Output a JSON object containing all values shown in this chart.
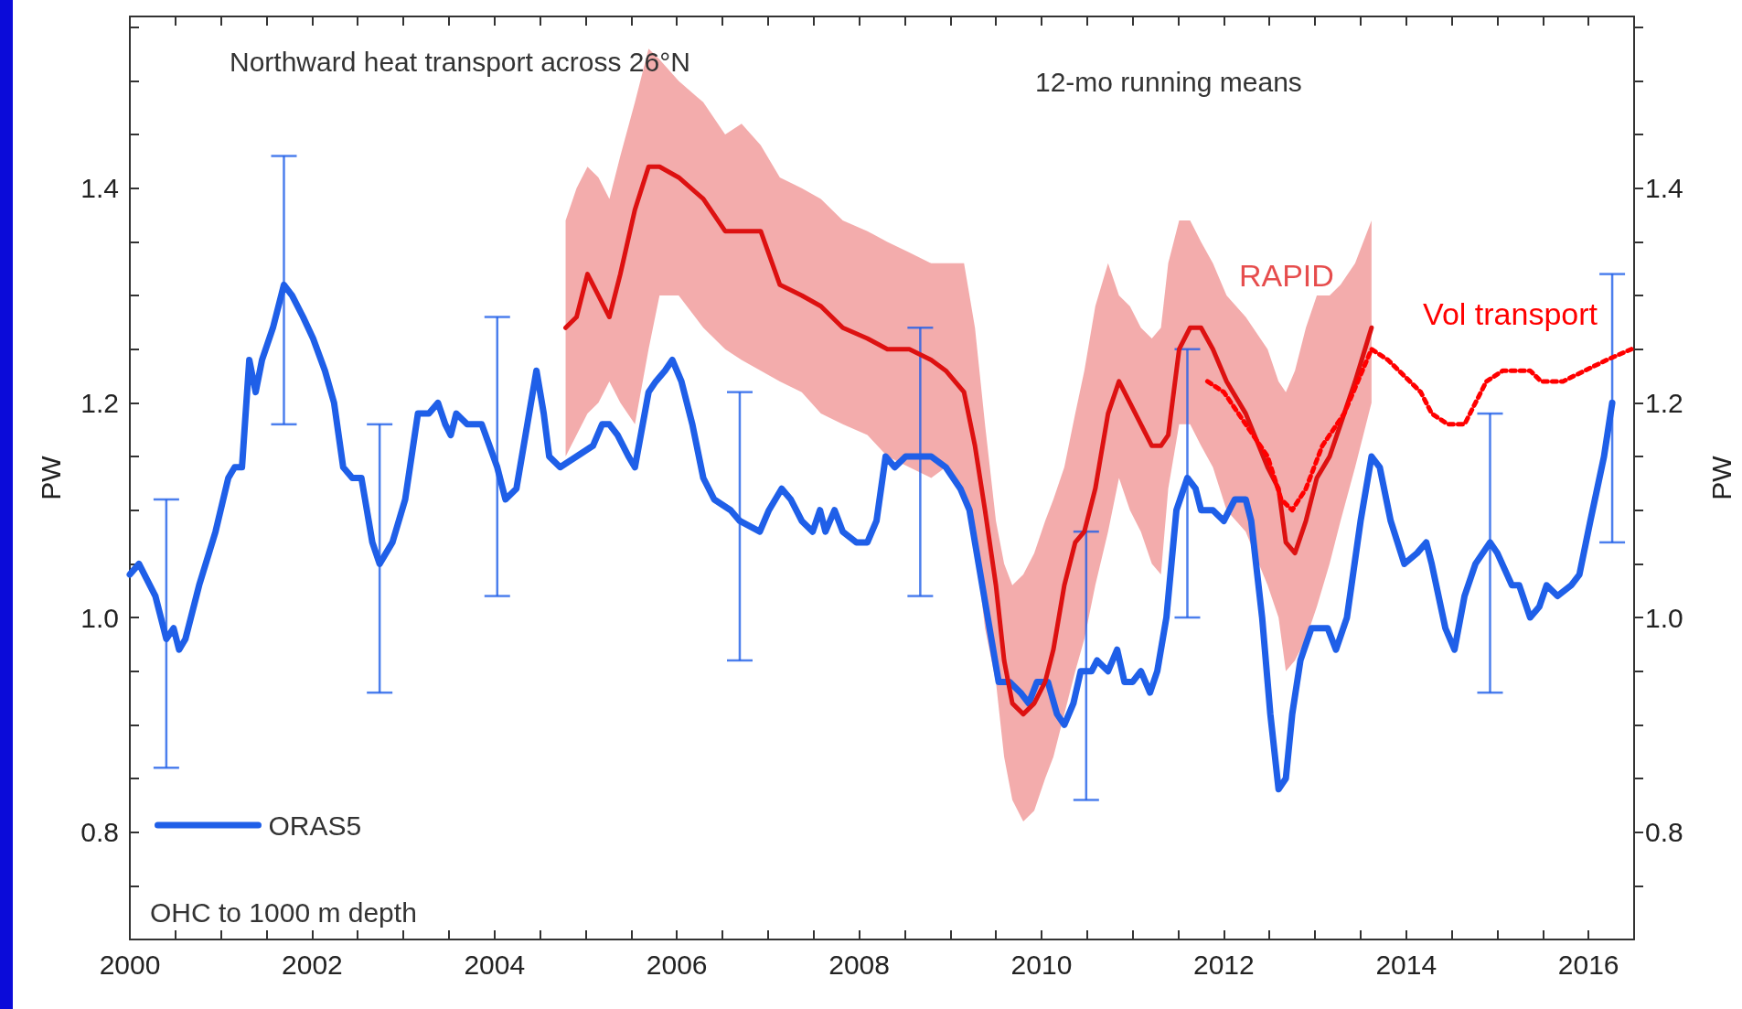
{
  "chart_data": {
    "type": "line",
    "ylabel": "PW",
    "y2label": "PW",
    "annotations": [
      "Northward heat transport across 26°N",
      "12-mo running means",
      "OHC to 1000 m depth"
    ],
    "xlim": [
      2000,
      2016.5
    ],
    "xticks": [
      2000,
      {
        "value": 2000.5,
        "label": null
      },
      {
        "value": 2001,
        "label": null
      },
      {
        "value": 2001.5,
        "label": null
      },
      2002,
      {
        "value": 2002.5,
        "label": null
      },
      {
        "value": 2003,
        "label": null
      },
      {
        "value": 2003.5,
        "label": null
      },
      2004,
      {
        "value": 2004.5,
        "label": null
      },
      {
        "value": 2005,
        "label": null
      },
      {
        "value": 2005.5,
        "label": null
      },
      2006,
      {
        "value": 2006.5,
        "label": null
      },
      {
        "value": 2007,
        "label": null
      },
      {
        "value": 2007.5,
        "label": null
      },
      2008,
      {
        "value": 2008.5,
        "label": null
      },
      {
        "value": 2009,
        "label": null
      },
      {
        "value": 2009.5,
        "label": null
      },
      2010,
      {
        "value": 2010.5,
        "label": null
      },
      {
        "value": 2011,
        "label": null
      },
      {
        "value": 2011.5,
        "label": null
      },
      2012,
      {
        "value": 2012.5,
        "label": null
      },
      {
        "value": 2013,
        "label": null
      },
      {
        "value": 2013.5,
        "label": null
      },
      2014,
      {
        "value": 2014.5,
        "label": null
      },
      {
        "value": 2015,
        "label": null
      },
      {
        "value": 2015.5,
        "label": null
      },
      2016
    ],
    "ylim": [
      0.7,
      1.56
    ],
    "yticks": [
      {
        "value": 0.75,
        "label": null
      },
      0.8,
      {
        "value": 0.85,
        "label": null
      },
      {
        "value": 0.9,
        "label": null
      },
      {
        "value": 0.95,
        "label": null
      },
      {
        "value": 1,
        "label": "1.0"
      },
      {
        "value": 1.05,
        "label": null
      },
      {
        "value": 1.1,
        "label": null
      },
      {
        "value": 1.15,
        "label": null
      },
      1.2,
      {
        "value": 1.25,
        "label": null
      },
      {
        "value": 1.3,
        "label": null
      },
      {
        "value": 1.35,
        "label": null
      },
      1.4,
      {
        "value": 1.45,
        "label": null
      },
      {
        "value": 1.5,
        "label": null
      },
      {
        "value": 1.55,
        "label": null
      }
    ],
    "y2lim": [
      0.7,
      1.56
    ],
    "y2ticks": [
      {
        "value": 0.75,
        "label": null
      },
      0.8,
      {
        "value": 0.85,
        "label": null
      },
      {
        "value": 0.9,
        "label": null
      },
      {
        "value": 0.95,
        "label": null
      },
      {
        "value": 1,
        "label": "1.0"
      },
      {
        "value": 1.05,
        "label": null
      },
      {
        "value": 1.1,
        "label": null
      },
      {
        "value": 1.15,
        "label": null
      },
      1.2,
      {
        "value": 1.25,
        "label": null
      },
      {
        "value": 1.3,
        "label": null
      },
      {
        "value": 1.35,
        "label": null
      },
      1.4,
      {
        "value": 1.45,
        "label": null
      },
      {
        "value": 1.5,
        "label": null
      },
      {
        "value": 1.55,
        "label": null
      }
    ],
    "grid": false,
    "legend": "bottom left",
    "marker": "none",
    "series": [
      {
        "name": "ORAS5",
        "color": "#1f5fe8",
        "x": [
          2000.0,
          2000.1,
          2000.28,
          2000.4,
          2000.48,
          2000.54,
          2000.61,
          2000.76,
          2000.94,
          2001.08,
          2001.15,
          2001.23,
          2001.31,
          2001.38,
          2001.45,
          2001.57,
          2001.69,
          2001.78,
          2001.9,
          2002.01,
          2002.14,
          2002.24,
          2002.34,
          2002.44,
          2002.54,
          2002.66,
          2002.74,
          2002.88,
          2003.02,
          2003.16,
          2003.28,
          2003.38,
          2003.46,
          2003.52,
          2003.58,
          2003.7,
          2003.86,
          2004.03,
          2004.12,
          2004.24,
          2004.34,
          2004.46,
          2004.54,
          2004.6,
          2004.72,
          2004.9,
          2005.08,
          2005.18,
          2005.26,
          2005.35,
          2005.47,
          2005.54,
          2005.69,
          2005.77,
          2005.87,
          2005.95,
          2006.05,
          2006.17,
          2006.29,
          2006.41,
          2006.59,
          2006.69,
          2006.91,
          2007.01,
          2007.15,
          2007.25,
          2007.37,
          2007.49,
          2007.57,
          2007.63,
          2007.73,
          2007.82,
          2007.97,
          2008.09,
          2008.19,
          2008.29,
          2008.39,
          2008.51,
          2008.67,
          2008.79,
          2008.95,
          2009.11,
          2009.21,
          2009.29,
          2009.41,
          2009.53,
          2009.65,
          2009.77,
          2009.86,
          2009.95,
          2010.07,
          2010.17,
          2010.25,
          2010.35,
          2010.43,
          2010.49,
          2010.55,
          2010.61,
          2010.73,
          2010.83,
          2010.91,
          2011.0,
          2011.09,
          2011.19,
          2011.27,
          2011.37,
          2011.48,
          2011.6,
          2011.69,
          2011.75,
          2011.88,
          2012.0,
          2012.12,
          2012.24,
          2012.3,
          2012.42,
          2012.51,
          2012.6,
          2012.68,
          2012.75,
          2012.84,
          2012.96,
          2013.14,
          2013.23,
          2013.35,
          2013.5,
          2013.62,
          2013.71,
          2013.83,
          2013.98,
          2014.12,
          2014.22,
          2014.28,
          2014.43,
          2014.53,
          2014.64,
          2014.76,
          2014.92,
          2015.0,
          2015.16,
          2015.24,
          2015.36,
          2015.46,
          2015.54,
          2015.66,
          2015.81,
          2015.9,
          2016.02,
          2016.17,
          2016.26
        ],
        "values": [
          1.04,
          1.05,
          1.02,
          0.98,
          0.99,
          0.97,
          0.98,
          1.03,
          1.08,
          1.13,
          1.14,
          1.14,
          1.24,
          1.21,
          1.24,
          1.27,
          1.31,
          1.3,
          1.28,
          1.26,
          1.23,
          1.2,
          1.14,
          1.13,
          1.13,
          1.07,
          1.05,
          1.07,
          1.11,
          1.19,
          1.19,
          1.2,
          1.18,
          1.17,
          1.19,
          1.18,
          1.18,
          1.14,
          1.11,
          1.12,
          1.17,
          1.23,
          1.19,
          1.15,
          1.14,
          1.15,
          1.16,
          1.18,
          1.18,
          1.17,
          1.15,
          1.14,
          1.21,
          1.22,
          1.23,
          1.24,
          1.22,
          1.18,
          1.13,
          1.11,
          1.1,
          1.09,
          1.08,
          1.1,
          1.12,
          1.11,
          1.09,
          1.08,
          1.1,
          1.08,
          1.1,
          1.08,
          1.07,
          1.07,
          1.09,
          1.15,
          1.14,
          1.15,
          1.15,
          1.15,
          1.14,
          1.12,
          1.1,
          1.06,
          1.0,
          0.94,
          0.94,
          0.93,
          0.92,
          0.94,
          0.94,
          0.91,
          0.9,
          0.92,
          0.95,
          0.95,
          0.95,
          0.96,
          0.95,
          0.97,
          0.94,
          0.94,
          0.95,
          0.93,
          0.95,
          1.0,
          1.1,
          1.13,
          1.12,
          1.1,
          1.1,
          1.09,
          1.11,
          1.11,
          1.09,
          1.0,
          0.91,
          0.84,
          0.85,
          0.91,
          0.96,
          0.99,
          0.99,
          0.97,
          1.0,
          1.09,
          1.15,
          1.14,
          1.09,
          1.05,
          1.06,
          1.07,
          1.05,
          0.99,
          0.97,
          1.02,
          1.05,
          1.07,
          1.06,
          1.03,
          1.03,
          1.0,
          1.01,
          1.03,
          1.02,
          1.03,
          1.04,
          1.09,
          1.15,
          1.2
        ],
        "errors": [
          null,
          null,
          null,
          [
            0.86,
            1.11
          ],
          null,
          null,
          null,
          null,
          null,
          null,
          null,
          null,
          null,
          null,
          null,
          null,
          [
            1.18,
            1.43
          ],
          null,
          null,
          null,
          null,
          null,
          null,
          null,
          null,
          null,
          [
            0.93,
            1.18
          ],
          null,
          null,
          null,
          null,
          null,
          null,
          null,
          null,
          null,
          null,
          [
            1.02,
            1.28
          ],
          null,
          null,
          null,
          null,
          null,
          null,
          null,
          null,
          null,
          null,
          null,
          null,
          null,
          null,
          null,
          null,
          null,
          null,
          null,
          null,
          null,
          null,
          null,
          [
            0.96,
            1.21
          ],
          null,
          null,
          null,
          null,
          null,
          null,
          null,
          null,
          null,
          null,
          null,
          null,
          null,
          null,
          null,
          null,
          [
            1.02,
            1.27
          ],
          null,
          null,
          null,
          null,
          null,
          null,
          null,
          null,
          null,
          null,
          null,
          null,
          null,
          null,
          null,
          null,
          [
            0.83,
            1.08
          ],
          null,
          null,
          null,
          null,
          null,
          null,
          null,
          null,
          null,
          null,
          null,
          [
            1.0,
            1.25
          ],
          null,
          null,
          null,
          null,
          null,
          null,
          null,
          null,
          null,
          null,
          null,
          null,
          null,
          null,
          null,
          null,
          null,
          null,
          null,
          null,
          null,
          null,
          null,
          null,
          null,
          null,
          null,
          null,
          null,
          [
            0.93,
            1.19
          ],
          null,
          null,
          null,
          null,
          null,
          null,
          null,
          null,
          null,
          null,
          null,
          [
            1.07,
            1.32
          ]
        ]
      },
      {
        "name": "RAPID",
        "color": "#dd1111",
        "x": [
          2004.78,
          2004.9,
          2005.02,
          2005.14,
          2005.26,
          2005.38,
          2005.54,
          2005.69,
          2005.81,
          2006.02,
          2006.29,
          2006.53,
          2006.71,
          2006.92,
          2007.13,
          2007.37,
          2007.58,
          2007.82,
          2008.09,
          2008.31,
          2008.55,
          2008.79,
          2008.95,
          2009.15,
          2009.27,
          2009.38,
          2009.5,
          2009.59,
          2009.68,
          2009.8,
          2009.92,
          2010.04,
          2010.13,
          2010.25,
          2010.37,
          2010.47,
          2010.59,
          2010.73,
          2010.85,
          2010.97,
          2011.09,
          2011.21,
          2011.31,
          2011.39,
          2011.51,
          2011.63,
          2011.75,
          2011.88,
          2012.03,
          2012.24,
          2012.48,
          2012.6,
          2012.68,
          2012.78,
          2012.9,
          2013.02,
          2013.16,
          2013.28,
          2013.44,
          2013.62
        ],
        "values": [
          1.27,
          1.28,
          1.32,
          1.3,
          1.28,
          1.32,
          1.38,
          1.42,
          1.42,
          1.41,
          1.39,
          1.36,
          1.36,
          1.36,
          1.31,
          1.3,
          1.29,
          1.27,
          1.26,
          1.25,
          1.25,
          1.24,
          1.23,
          1.21,
          1.16,
          1.1,
          1.03,
          0.96,
          0.92,
          0.91,
          0.92,
          0.94,
          0.97,
          1.03,
          1.07,
          1.08,
          1.12,
          1.19,
          1.22,
          1.2,
          1.18,
          1.16,
          1.16,
          1.17,
          1.25,
          1.27,
          1.27,
          1.25,
          1.22,
          1.19,
          1.14,
          1.12,
          1.07,
          1.06,
          1.09,
          1.13,
          1.15,
          1.18,
          1.22,
          1.27
        ],
        "upper": [
          1.37,
          1.4,
          1.42,
          1.41,
          1.39,
          1.43,
          1.48,
          1.53,
          1.52,
          1.5,
          1.48,
          1.45,
          1.46,
          1.44,
          1.41,
          1.4,
          1.39,
          1.37,
          1.36,
          1.35,
          1.34,
          1.33,
          1.33,
          1.33,
          1.27,
          1.18,
          1.09,
          1.05,
          1.03,
          1.04,
          1.06,
          1.09,
          1.11,
          1.14,
          1.19,
          1.23,
          1.29,
          1.33,
          1.3,
          1.29,
          1.27,
          1.26,
          1.27,
          1.33,
          1.37,
          1.37,
          1.35,
          1.33,
          1.3,
          1.28,
          1.25,
          1.22,
          1.21,
          1.23,
          1.27,
          1.3,
          1.3,
          1.31,
          1.33,
          1.37
        ],
        "lower": [
          1.15,
          1.17,
          1.19,
          1.2,
          1.22,
          1.2,
          1.18,
          1.25,
          1.3,
          1.3,
          1.27,
          1.25,
          1.24,
          1.23,
          1.22,
          1.21,
          1.19,
          1.18,
          1.17,
          1.15,
          1.14,
          1.13,
          1.14,
          1.11,
          1.07,
          0.99,
          0.94,
          0.87,
          0.83,
          0.81,
          0.82,
          0.85,
          0.87,
          0.91,
          0.95,
          0.98,
          1.03,
          1.08,
          1.13,
          1.1,
          1.08,
          1.05,
          1.04,
          1.12,
          1.18,
          1.18,
          1.16,
          1.14,
          1.1,
          1.08,
          1.03,
          1.0,
          0.95,
          0.96,
          0.98,
          1.01,
          1.05,
          1.09,
          1.14,
          1.2
        ]
      },
      {
        "name": "Vol transport",
        "line_style": "dotted",
        "color": "#ff0000",
        "x": [
          2011.82,
          2012.0,
          2012.24,
          2012.48,
          2012.63,
          2012.75,
          2012.9,
          2013.08,
          2013.32,
          2013.62,
          2013.8,
          2014.04,
          2014.16,
          2014.28,
          2014.46,
          2014.64,
          2014.76,
          2014.88,
          2015.06,
          2015.24,
          2015.36,
          2015.48,
          2015.6,
          2015.72,
          2015.96,
          2016.2,
          2016.47
        ],
        "values": [
          1.22,
          1.21,
          1.18,
          1.15,
          1.11,
          1.1,
          1.12,
          1.16,
          1.19,
          1.25,
          1.24,
          1.22,
          1.21,
          1.19,
          1.18,
          1.18,
          1.2,
          1.22,
          1.23,
          1.23,
          1.23,
          1.22,
          1.22,
          1.22,
          1.23,
          1.24,
          1.25
        ]
      }
    ]
  }
}
